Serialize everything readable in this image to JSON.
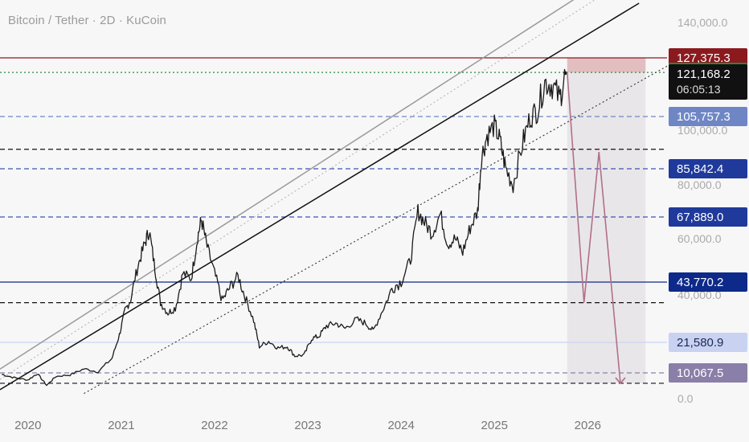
{
  "header": {
    "title": "Bitcoin / Tether · 2D · KuCoin"
  },
  "chart_data": {
    "type": "line",
    "title": "Bitcoin / Tether · 2D · KuCoin",
    "x_ticks": [
      "2020",
      "2021",
      "2022",
      "2023",
      "2024",
      "2025",
      "2026"
    ],
    "x_range": [
      2019.7,
      2026.85
    ],
    "y_ticks": [
      "140,000.0",
      "100,000.0",
      "80,000.0",
      "60,000.0",
      "40,000.0",
      "0.0"
    ],
    "y_scale": "nonlinear (custom price scale)",
    "current_price": {
      "value": "121,168.2",
      "countdown": "06:05:13"
    },
    "price_labels": [
      {
        "value": "127,375.3",
        "color": "#8b1a1f"
      },
      {
        "value": "121,446.4",
        "color": "#2e8b3a"
      },
      {
        "value": "105,757.3",
        "color": "#6f86c4"
      },
      {
        "value": "85,842.4",
        "color": "#1f3a9a"
      },
      {
        "value": "67,889.0",
        "color": "#1f3a9a"
      },
      {
        "value": "43,770.2",
        "color": "#0d2a8a"
      },
      {
        "value": "21,580.9",
        "color": "#c9d2f1"
      },
      {
        "value": "10,067.5",
        "color": "#8a7fa8"
      }
    ],
    "price_series": [
      [
        2019.72,
        9500
      ],
      [
        2019.85,
        8200
      ],
      [
        2020.0,
        7300
      ],
      [
        2020.1,
        9800
      ],
      [
        2020.2,
        5200
      ],
      [
        2020.3,
        8700
      ],
      [
        2020.45,
        9300
      ],
      [
        2020.6,
        11600
      ],
      [
        2020.75,
        10500
      ],
      [
        2020.9,
        15500
      ],
      [
        2020.98,
        24500
      ],
      [
        2021.04,
        34000
      ],
      [
        2021.1,
        38000
      ],
      [
        2021.18,
        50000
      ],
      [
        2021.25,
        58000
      ],
      [
        2021.3,
        63000
      ],
      [
        2021.36,
        49000
      ],
      [
        2021.42,
        37000
      ],
      [
        2021.5,
        33000
      ],
      [
        2021.58,
        35000
      ],
      [
        2021.66,
        47000
      ],
      [
        2021.75,
        45000
      ],
      [
        2021.82,
        61000
      ],
      [
        2021.86,
        67000
      ],
      [
        2021.92,
        57000
      ],
      [
        2022.0,
        47000
      ],
      [
        2022.08,
        38000
      ],
      [
        2022.16,
        42000
      ],
      [
        2022.25,
        46000
      ],
      [
        2022.33,
        39000
      ],
      [
        2022.42,
        30000
      ],
      [
        2022.48,
        20000
      ],
      [
        2022.58,
        22000
      ],
      [
        2022.68,
        19500
      ],
      [
        2022.78,
        20000
      ],
      [
        2022.86,
        16500
      ],
      [
        2022.96,
        16800
      ],
      [
        2023.04,
        23000
      ],
      [
        2023.12,
        24000
      ],
      [
        2023.2,
        28000
      ],
      [
        2023.3,
        29000
      ],
      [
        2023.4,
        27000
      ],
      [
        2023.52,
        30500
      ],
      [
        2023.62,
        29000
      ],
      [
        2023.7,
        26000
      ],
      [
        2023.8,
        34000
      ],
      [
        2023.9,
        42000
      ],
      [
        2024.0,
        44000
      ],
      [
        2024.1,
        52000
      ],
      [
        2024.18,
        70000
      ],
      [
        2024.25,
        66000
      ],
      [
        2024.33,
        62000
      ],
      [
        2024.42,
        69000
      ],
      [
        2024.5,
        58000
      ],
      [
        2024.58,
        60000
      ],
      [
        2024.66,
        55000
      ],
      [
        2024.74,
        64000
      ],
      [
        2024.82,
        70000
      ],
      [
        2024.86,
        90000
      ],
      [
        2024.92,
        98000
      ],
      [
        2025.0,
        102000
      ],
      [
        2025.06,
        96000
      ],
      [
        2025.12,
        86000
      ],
      [
        2025.2,
        80000
      ],
      [
        2025.3,
        95000
      ],
      [
        2025.38,
        105000
      ],
      [
        2025.46,
        108000
      ],
      [
        2025.54,
        118000
      ],
      [
        2025.62,
        117000
      ],
      [
        2025.7,
        112000
      ],
      [
        2025.76,
        121168
      ]
    ],
    "horizontal_lines": [
      {
        "y": 127375,
        "style": "solid",
        "color": "#8b1a1f"
      },
      {
        "y": 121446,
        "style": "dotted",
        "color": "#2e8b3a"
      },
      {
        "y": 105757,
        "style": "dashed",
        "color": "#6f86c4"
      },
      {
        "y": 93000,
        "style": "dashed",
        "color": "#111111"
      },
      {
        "y": 85842,
        "style": "dashed",
        "color": "#3a55b0"
      },
      {
        "y": 67889,
        "style": "dashed",
        "color": "#3a55b0"
      },
      {
        "y": 43770,
        "style": "solid",
        "color": "#0d2a8a"
      },
      {
        "y": 37000,
        "style": "dashed",
        "color": "#111111"
      },
      {
        "y": 21581,
        "style": "solid",
        "color": "#c9d2f1"
      },
      {
        "y": 10068,
        "style": "dashed",
        "color": "#8a7fa8"
      },
      {
        "y": 6000,
        "style": "dashed",
        "color": "#111111"
      }
    ],
    "trendlines": [
      {
        "from": [
          2019.7,
          3500
        ],
        "to": [
          2026.55,
          148000
        ],
        "color": "#111111",
        "style": "solid"
      },
      {
        "from": [
          2019.7,
          11500
        ],
        "to": [
          2025.95,
          152000
        ],
        "color": "#9a9a9a",
        "style": "solid"
      },
      {
        "from": [
          2019.7,
          7500
        ],
        "to": [
          2026.1,
          150000
        ],
        "color": "#b5b5b5",
        "style": "dotted"
      },
      {
        "from": [
          2020.6,
          2000
        ],
        "to": [
          2026.85,
          124000
        ],
        "color": "#333333",
        "style": "dotted"
      }
    ],
    "projection_path": [
      [
        2025.78,
        121446
      ],
      [
        2025.96,
        37000
      ],
      [
        2026.12,
        92000
      ],
      [
        2026.35,
        6000
      ]
    ],
    "projection_color": "#b07088",
    "shaded_zones": [
      {
        "x": [
          2025.78,
          2026.62
        ],
        "y": [
          121446,
          127375
        ],
        "color": "rgba(200,120,125,0.45)"
      },
      {
        "x": [
          2025.78,
          2026.62
        ],
        "y": [
          6000,
          121446
        ],
        "color": "rgba(214,209,216,0.45)"
      }
    ]
  }
}
